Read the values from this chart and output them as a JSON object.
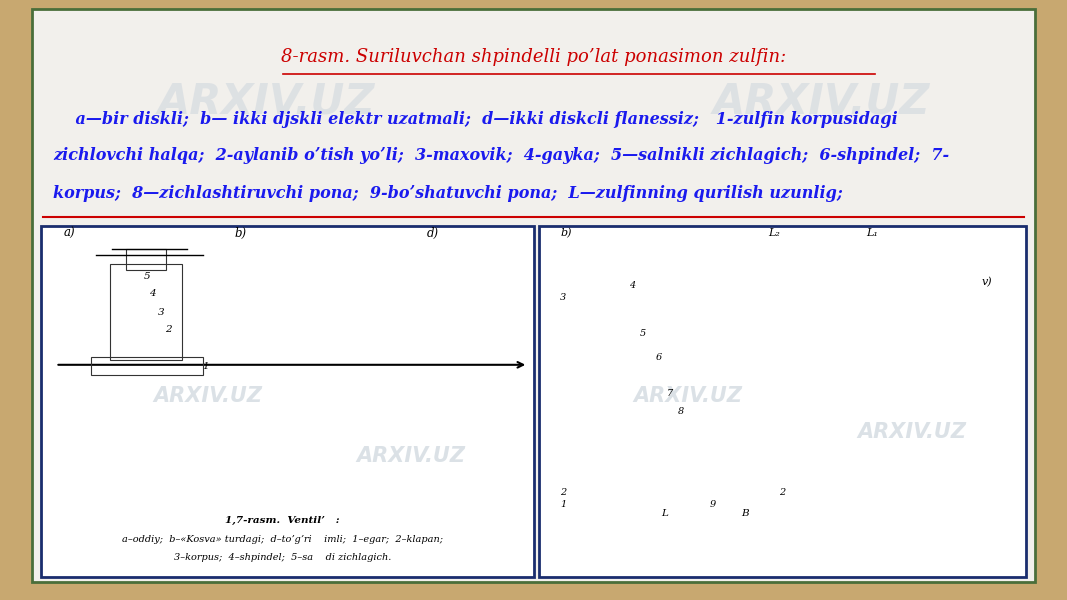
{
  "bg_color": "#c8a870",
  "panel_bg": "#f2f0ec",
  "panel_border": "#4a6e3a",
  "title": "8-rasm. Suriluvchan shpindelli po’lat ponasimon zulfin:",
  "title_color": "#cc0000",
  "title_fs": 13,
  "body_color": "#1a1aee",
  "body_fs": 11.5,
  "img_border": "#1a2d6e",
  "watermark_color": "#cdd5dd",
  "divider_color": "#cc0000",
  "line1": "    a—bir diskli;  b— ikki djskli elektr uzatmali;  d—ikki diskcli flanessiz;   1-zulfin korpusidagi",
  "line2": "zichlovchi halqa;  2-aylanib oʼtish yoʼli;  3-maxovik;  4-gayka;  5—salnikli zichlagich;  6-shpindel;  7-",
  "line3": "korpus;  8—zichlashtiruvchi pona;  9-boʼshatuvchi pona;  L—zulfinning qurilish uzunlig;"
}
